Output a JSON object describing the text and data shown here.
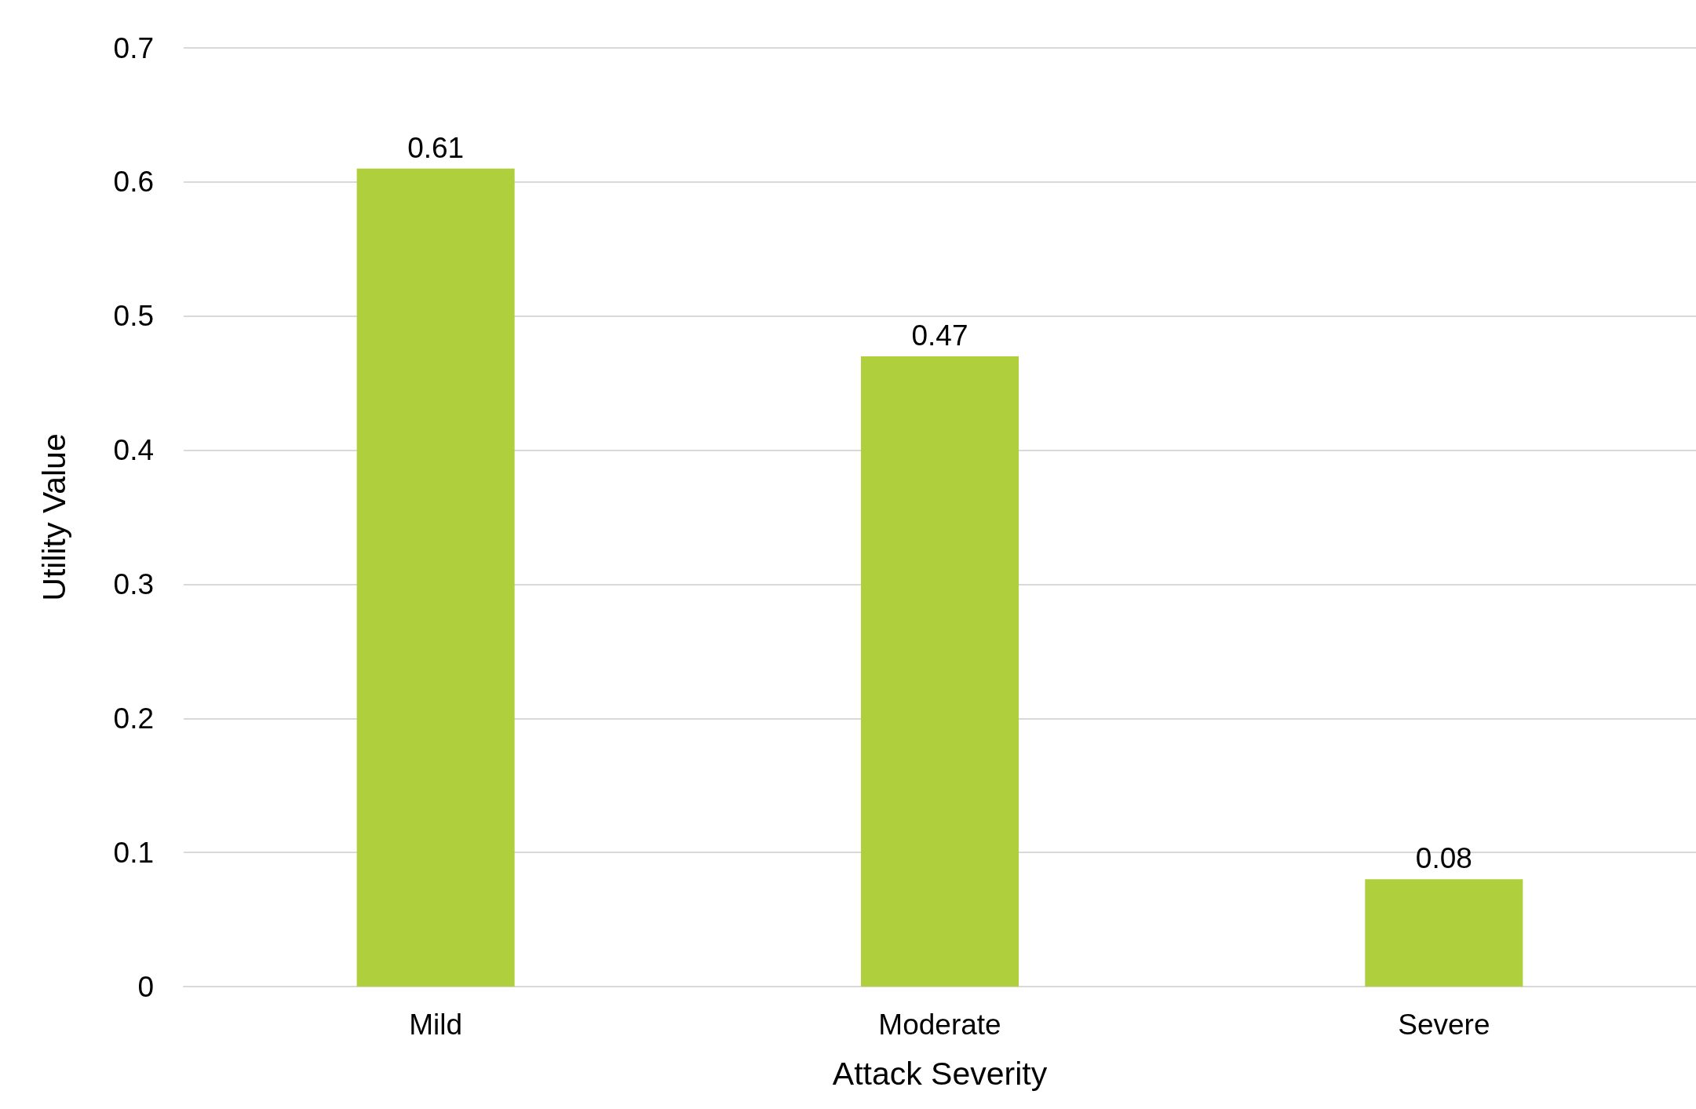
{
  "chart_data": {
    "type": "bar",
    "xlabel": "Attack Severity",
    "ylabel": "Utility Value",
    "categories": [
      "Mild",
      "Moderate",
      "Severe"
    ],
    "values": [
      0.61,
      0.47,
      0.08
    ],
    "color": "#afcf3d",
    "ylim": [
      0,
      0.7
    ],
    "yticks": [
      0,
      0.1,
      0.2,
      0.3,
      0.4,
      0.5,
      0.6,
      0.7
    ],
    "grid": "y",
    "data_labels": true
  }
}
